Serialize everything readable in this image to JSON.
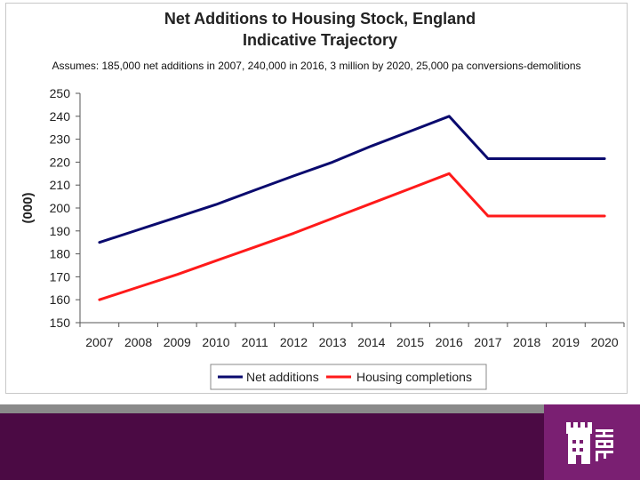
{
  "chart_data": {
    "type": "line",
    "title": "Net Additions to Housing Stock, England",
    "subtitle": "Indicative Trajectory",
    "note": "Assumes: 185,000 net additions in 2007, 240,000 in 2016, 3 million by 2020, 25,000 pa conversions-demolitions",
    "ylabel": "(000)",
    "xlabel": "",
    "ylim": [
      150,
      250
    ],
    "yticks": [
      150,
      160,
      170,
      180,
      190,
      200,
      210,
      220,
      230,
      240,
      250
    ],
    "x": [
      "2007",
      "2008",
      "2009",
      "2010",
      "2011",
      "2012",
      "2013",
      "2014",
      "2015",
      "2016",
      "2017",
      "2018",
      "2019",
      "2020"
    ],
    "grid": false,
    "legend_position": "bottom",
    "series": [
      {
        "name": "Net additions",
        "color": "#0a0a6e",
        "values": [
          185,
          190.5,
          196,
          201.5,
          207.8,
          214,
          220,
          227,
          233.5,
          240,
          221.5,
          221.5,
          221.5,
          221.5
        ]
      },
      {
        "name": "Housing completions",
        "color": "#ff1a1a",
        "values": [
          160,
          165.5,
          171,
          177,
          183,
          189,
          195.5,
          202,
          208.5,
          215,
          196.5,
          196.5,
          196.5,
          196.5
        ]
      }
    ]
  },
  "branding": {
    "logo": "HBF",
    "footer_color": "#4b0a44",
    "logo_bg_color": "#7a1f72"
  }
}
